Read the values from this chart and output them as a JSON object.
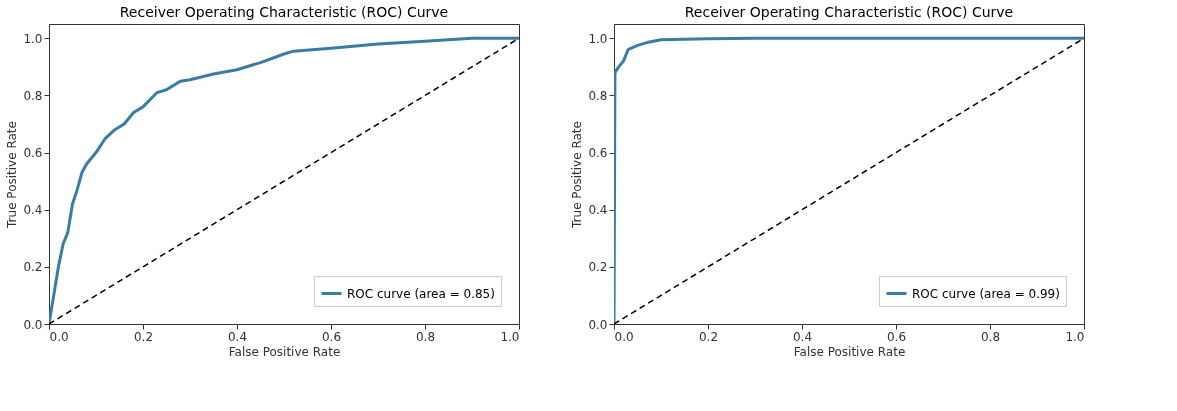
{
  "chart_data": [
    {
      "type": "line",
      "title": "Receiver Operating Characteristic (ROC) Curve",
      "xlabel": "False Positive Rate",
      "ylabel": "True Positive Rate",
      "xlim": [
        0,
        1.0
      ],
      "ylim": [
        0,
        1.05
      ],
      "xticks": [
        {
          "value": 0,
          "label": "0.0"
        },
        {
          "value": 0.2,
          "label": "0.2"
        },
        {
          "value": 0.4,
          "label": "0.4"
        },
        {
          "value": 0.6,
          "label": "0.6"
        },
        {
          "value": 0.8,
          "label": "0.8"
        },
        {
          "value": 1.0,
          "label": "1.0"
        }
      ],
      "yticks": [
        {
          "value": 0,
          "label": "0.0"
        },
        {
          "value": 0.2,
          "label": "0.2"
        },
        {
          "value": 0.4,
          "label": "0.4"
        },
        {
          "value": 0.6,
          "label": "0.6"
        },
        {
          "value": 0.8,
          "label": "0.8"
        },
        {
          "value": 1.0,
          "label": "1.0"
        }
      ],
      "legend": "bottom right",
      "series": [
        {
          "name": "ROC curve (area = 0.85)",
          "color": "#3a7ca5",
          "line_style": "solid",
          "x": [
            0,
            0.01,
            0.02,
            0.03,
            0.04,
            0.05,
            0.06,
            0.07,
            0.08,
            0.1,
            0.12,
            0.14,
            0.16,
            0.18,
            0.2,
            0.23,
            0.25,
            0.28,
            0.3,
            0.35,
            0.4,
            0.45,
            0.5,
            0.52,
            0.6,
            0.7,
            0.8,
            0.9,
            1.0
          ],
          "values": [
            0,
            0.1,
            0.2,
            0.28,
            0.32,
            0.42,
            0.47,
            0.53,
            0.56,
            0.6,
            0.65,
            0.68,
            0.7,
            0.74,
            0.76,
            0.81,
            0.82,
            0.85,
            0.855,
            0.875,
            0.89,
            0.915,
            0.945,
            0.955,
            0.965,
            0.98,
            0.99,
            1.0,
            1.0
          ]
        },
        {
          "color": "#000000",
          "line_style": "dashed",
          "x": [
            0,
            1
          ],
          "values": [
            0,
            1
          ]
        }
      ]
    },
    {
      "type": "line",
      "title": "Receiver Operating Characteristic (ROC) Curve",
      "xlabel": "False Positive Rate",
      "ylabel": "True Positive Rate",
      "xlim": [
        0,
        1.0
      ],
      "ylim": [
        0,
        1.05
      ],
      "xticks": [
        {
          "value": 0,
          "label": "0.0"
        },
        {
          "value": 0.2,
          "label": "0.2"
        },
        {
          "value": 0.4,
          "label": "0.4"
        },
        {
          "value": 0.6,
          "label": "0.6"
        },
        {
          "value": 0.8,
          "label": "0.8"
        },
        {
          "value": 1.0,
          "label": "1.0"
        }
      ],
      "yticks": [
        {
          "value": 0,
          "label": "0.0"
        },
        {
          "value": 0.2,
          "label": "0.2"
        },
        {
          "value": 0.4,
          "label": "0.4"
        },
        {
          "value": 0.6,
          "label": "0.6"
        },
        {
          "value": 0.8,
          "label": "0.8"
        },
        {
          "value": 1.0,
          "label": "1.0"
        }
      ],
      "legend": "bottom right",
      "series": [
        {
          "name": "ROC curve (area = 0.99)",
          "color": "#3a7ca5",
          "line_style": "solid",
          "x": [
            0,
            0.002,
            0.01,
            0.02,
            0.03,
            0.05,
            0.07,
            0.1,
            0.2,
            0.3,
            1.0
          ],
          "values": [
            0,
            0.88,
            0.9,
            0.92,
            0.96,
            0.975,
            0.985,
            0.995,
            0.998,
            1.0,
            1.0
          ]
        },
        {
          "color": "#000000",
          "line_style": "dashed",
          "x": [
            0,
            1
          ],
          "values": [
            0,
            1
          ]
        }
      ]
    }
  ]
}
